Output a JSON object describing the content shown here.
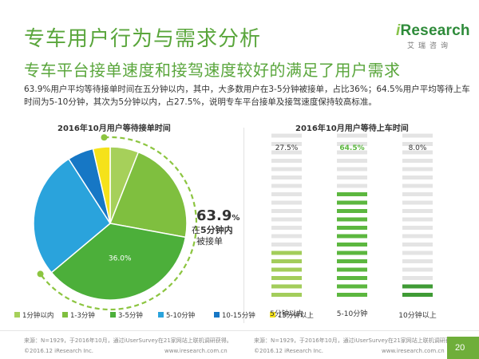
{
  "page": {
    "title": "专车用户行为与需求分析",
    "subtitle": "专车平台接单速度和接驾速度较好的满足了用户需求",
    "description": "63.9%用户平均等待接单时间在五分钟以内，其中，大多数用户在3-5分钟被接单，占比36%；64.5%用户平均等待上车时间为5-10分钟，其次为5分钟以内，占27.5%，说明专车平台接单及接驾速度保持较高标准。",
    "logo_main_i": "i",
    "logo_main_rest": "Research",
    "logo_sub": "艾瑞咨询",
    "page_number": "20",
    "source_left": "来源：N=1929，于2016年10月，通过iUserSurvey在21家网站上联机调研获得。",
    "copyright_left": "©2016.12 iResearch Inc.",
    "site_left": "www.iresearch.com.cn",
    "source_right": "来源：N=1929，于2016年10月，通过iUserSurvey在21家网站上联机调研获得。",
    "copyright_right": "©2016.12 iResearch Inc.",
    "site_right": "www.iresearch.com.cn"
  },
  "colors": {
    "title_green": "#5aa63c",
    "seg_lt1": "#a6d05a",
    "seg_1_3": "#7fbf3f",
    "seg_3_5": "#4caf3a",
    "seg_5_10": "#2aa3dc",
    "seg_10_15": "#1677c5",
    "seg_gt15": "#f5e21a",
    "bar_empty": "#e4e4e4"
  },
  "chart_data": [
    {
      "type": "pie",
      "title": "2016年10月用户等待接单时间",
      "categories": [
        "1分钟以内",
        "1-3分钟",
        "3-5分钟",
        "5-10分钟",
        "10-15分钟",
        "15分钟以上"
      ],
      "values": [
        6.0,
        21.9,
        36.0,
        27.0,
        5.5,
        3.6
      ],
      "data_labels": [
        "",
        "",
        "36.0%",
        "",
        "",
        ""
      ],
      "legend": "bottom",
      "callout": {
        "value": "63.9",
        "unit": "%",
        "line2_pre": "在",
        "line2_bold": "5分钟内",
        "line3": "被接单"
      }
    },
    {
      "type": "bar",
      "title": "2016年10月用户等待上车时间",
      "categories": [
        "5分钟以内",
        "5-10分钟",
        "10分钟以上"
      ],
      "values": [
        27.5,
        64.5,
        8.0
      ],
      "value_labels": [
        "27.5%",
        "64.5%",
        "8.0%"
      ],
      "ylim": [
        0,
        100
      ],
      "grid": false
    }
  ]
}
